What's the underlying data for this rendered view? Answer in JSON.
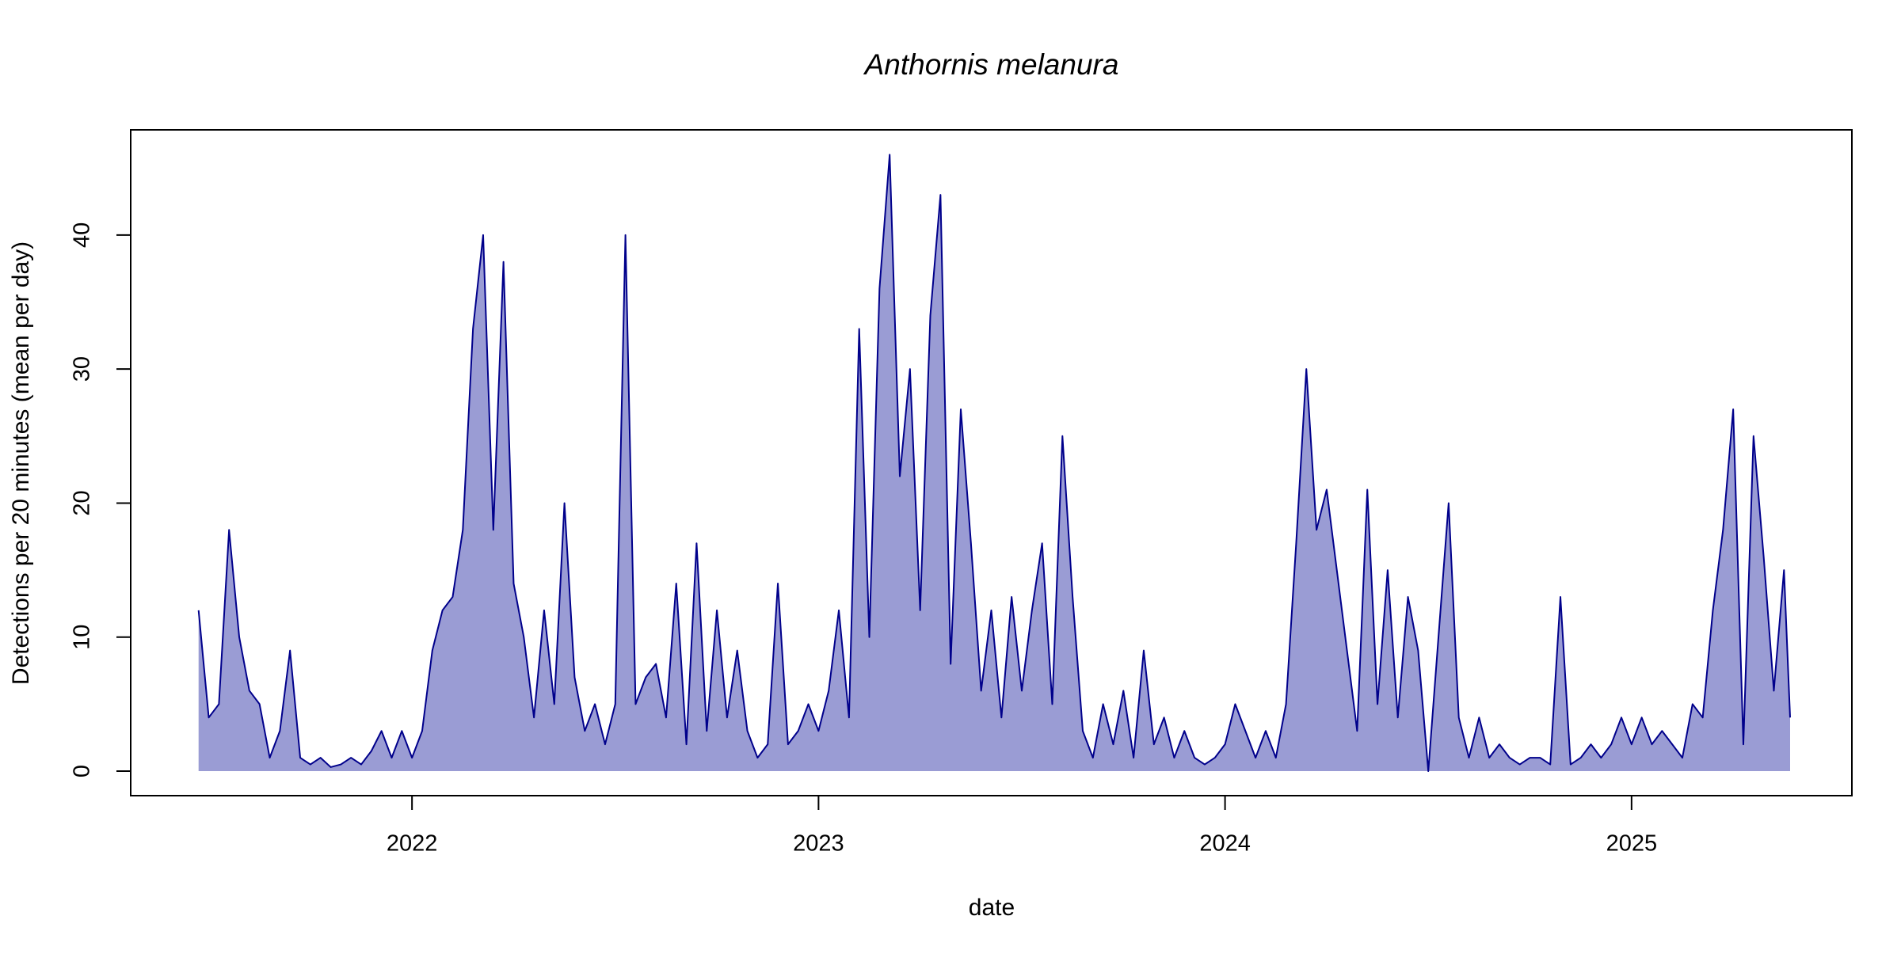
{
  "chart_data": {
    "type": "area",
    "title": "Anthornis melanura",
    "x_label": "date",
    "y_label": "Detections per 20 minutes (mean per day)",
    "line_color": "#00008b",
    "fill_color": "#9a9cd4",
    "xlim": [
      2021.308,
      2025.542
    ],
    "xticks": [
      2022,
      2023,
      2024,
      2025
    ],
    "ylim": [
      -1.83,
      47.85
    ],
    "yticks": [
      0,
      10,
      20,
      30,
      40
    ],
    "x": [
      2021.475,
      2021.5,
      2021.525,
      2021.55,
      2021.575,
      2021.6,
      2021.625,
      2021.65,
      2021.675,
      2021.7,
      2021.725,
      2021.75,
      2021.775,
      2021.8,
      2021.825,
      2021.85,
      2021.875,
      2021.9,
      2021.925,
      2021.95,
      2021.975,
      2022.0,
      2022.025,
      2022.05,
      2022.075,
      2022.1,
      2022.125,
      2022.15,
      2022.175,
      2022.2,
      2022.225,
      2022.25,
      2022.275,
      2022.3,
      2022.325,
      2022.35,
      2022.375,
      2022.4,
      2022.425,
      2022.45,
      2022.475,
      2022.5,
      2022.525,
      2022.55,
      2022.575,
      2022.6,
      2022.625,
      2022.65,
      2022.675,
      2022.7,
      2022.725,
      2022.75,
      2022.775,
      2022.8,
      2022.825,
      2022.85,
      2022.875,
      2022.9,
      2022.925,
      2022.95,
      2022.975,
      2023.0,
      2023.025,
      2023.05,
      2023.075,
      2023.1,
      2023.125,
      2023.15,
      2023.175,
      2023.2,
      2023.225,
      2023.25,
      2023.275,
      2023.3,
      2023.325,
      2023.35,
      2023.375,
      2023.4,
      2023.425,
      2023.45,
      2023.475,
      2023.5,
      2023.525,
      2023.55,
      2023.575,
      2023.6,
      2023.625,
      2023.65,
      2023.675,
      2023.7,
      2023.725,
      2023.75,
      2023.775,
      2023.8,
      2023.825,
      2023.85,
      2023.875,
      2023.9,
      2023.925,
      2023.95,
      2023.975,
      2024.0,
      2024.025,
      2024.05,
      2024.075,
      2024.1,
      2024.125,
      2024.15,
      2024.175,
      2024.2,
      2024.225,
      2024.25,
      2024.275,
      2024.3,
      2024.325,
      2024.35,
      2024.375,
      2024.4,
      2024.425,
      2024.45,
      2024.475,
      2024.5,
      2024.525,
      2024.55,
      2024.575,
      2024.6,
      2024.625,
      2024.65,
      2024.675,
      2024.7,
      2024.725,
      2024.75,
      2024.775,
      2024.8,
      2024.825,
      2024.85,
      2024.875,
      2024.9,
      2024.925,
      2024.95,
      2024.975,
      2025.0,
      2025.025,
      2025.05,
      2025.075,
      2025.1,
      2025.125,
      2025.15,
      2025.175,
      2025.2,
      2025.225,
      2025.25,
      2025.275,
      2025.3,
      2025.325,
      2025.35,
      2025.375,
      2025.39
    ],
    "values": [
      12,
      4,
      5,
      18,
      10,
      6,
      5,
      1,
      3,
      9,
      1,
      0.5,
      1,
      0.3,
      0.5,
      1,
      0.5,
      1.5,
      3,
      1,
      3,
      1,
      3,
      9,
      12,
      13,
      18,
      33,
      40,
      18,
      38,
      14,
      10,
      4,
      12,
      5,
      20,
      7,
      3,
      5,
      2,
      5,
      40,
      5,
      7,
      8,
      4,
      14,
      2,
      17,
      3,
      12,
      4,
      9,
      3,
      1,
      2,
      14,
      2,
      3,
      5,
      3,
      6,
      12,
      4,
      33,
      10,
      36,
      46,
      22,
      30,
      12,
      34,
      43,
      8,
      27,
      17,
      6,
      12,
      4,
      13,
      6,
      12,
      17,
      5,
      25,
      13,
      3,
      1,
      5,
      2,
      6,
      1,
      9,
      2,
      4,
      1,
      3,
      1,
      0.5,
      1,
      2,
      5,
      3,
      1,
      3,
      1,
      5,
      17,
      30,
      18,
      21,
      15,
      9,
      3,
      21,
      5,
      15,
      4,
      13,
      9,
      0,
      10,
      20,
      4,
      1,
      4,
      1,
      2,
      1,
      0.5,
      1,
      1,
      0.5,
      13,
      0.5,
      1,
      2,
      1,
      2,
      4,
      2,
      4,
      2,
      3,
      2,
      1,
      5,
      4,
      12,
      18,
      27,
      2,
      25,
      16,
      6,
      15,
      4
    ]
  }
}
